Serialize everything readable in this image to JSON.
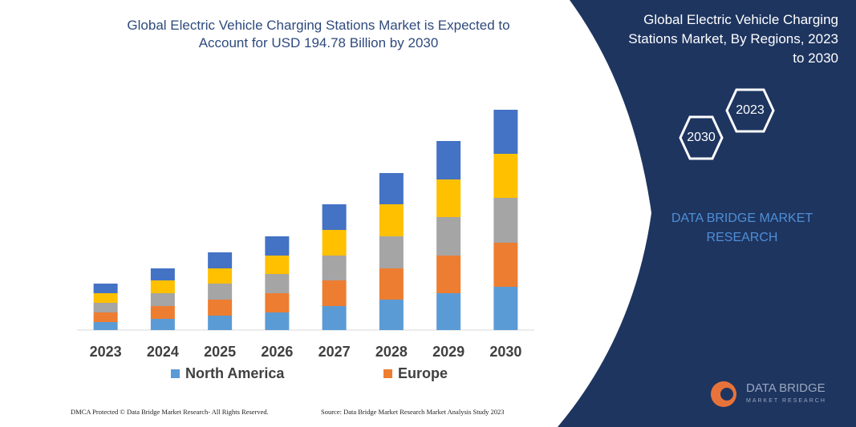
{
  "chart_data": {
    "type": "stacked_bar",
    "title": "Global Electric Vehicle Charging Stations Market is Expected to Account for USD 194.78 Billion by 2030",
    "categories": [
      "2023",
      "2024",
      "2025",
      "2026",
      "2027",
      "2028",
      "2029",
      "2030"
    ],
    "series": [
      {
        "name": "North America",
        "color": "#5b9bd5",
        "values": [
          10,
          14,
          18,
          22,
          30,
          38,
          46,
          54
        ]
      },
      {
        "name": "Europe",
        "color": "#ed7d31",
        "values": [
          12,
          16,
          20,
          24,
          32,
          39,
          47,
          55
        ]
      },
      {
        "color": "#a5a5a5",
        "values": [
          12,
          16,
          20,
          24,
          31,
          40,
          48,
          56
        ]
      },
      {
        "color": "#ffc000",
        "values": [
          12,
          16,
          19,
          23,
          32,
          40,
          47,
          55
        ]
      },
      {
        "color": "#4472c4",
        "values": [
          12,
          15,
          20,
          24,
          32,
          39,
          48,
          55
        ]
      }
    ]
  },
  "panel": {
    "title": "Global Electric Vehicle Charging Stations Market, By Regions, 2023 to 2030",
    "hex_top": "2023",
    "hex_bottom": "2030",
    "brand": "DATA BRIDGE MARKET RESEARCH"
  },
  "logo": {
    "name": "DATA BRIDGE",
    "tagline": "MARKET RESEARCH"
  },
  "footer": {
    "left": "DMCA Protected © Data Bridge Market Research- All Rights Reserved.",
    "right": "Source: Data Bridge Market Research Market Analysis Study 2023"
  }
}
